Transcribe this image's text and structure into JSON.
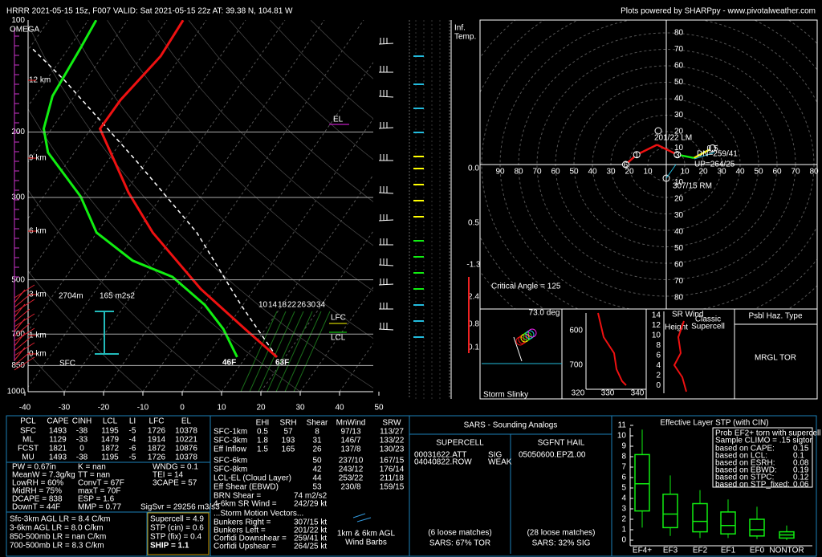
{
  "header": {
    "left": "HRRR 2021-05-15 15z, F007  VALID: Sat 2021-05-15 22z  AT: 39.38 N, 104.81 W",
    "right": "Plots powered by SHARPpy - www.pivotalweather.com"
  },
  "skewt": {
    "pressure_labels": [
      "100",
      "200",
      "300",
      "500",
      "700",
      "850",
      "1000"
    ],
    "temp_labels": [
      "-40",
      "-30",
      "-20",
      "-10",
      "0",
      "10",
      "20",
      "30",
      "40",
      "50"
    ],
    "omega_label": "OMEGA",
    "height_labels": [
      "12 km",
      "9 km",
      "6 km",
      "3 km",
      "1 km",
      "0 km"
    ],
    "inflow_height": "2704m",
    "inflow_srh": "165 m2s2",
    "sfc_label": "SFC",
    "dewpoint_label": "46F",
    "temperature_label": "63F",
    "el_label": "EL",
    "lfc_label": "LFC",
    "lcl_label": "LCL",
    "isopleth_labels": [
      "10",
      "14",
      "18",
      "22",
      "26",
      "30",
      "34"
    ],
    "temperature": {
      "pressure": [
        807,
        678,
        529,
        373,
        291,
        196,
        164,
        125,
        100
      ],
      "temp_c": [
        17.9,
        4.8,
        -13.6,
        -35.8,
        -49.1,
        -67.7,
        -67.6,
        -65.2,
        -65.9
      ]
    },
    "dewpoint": {
      "pressure": [
        807,
        678,
        584,
        491,
        444,
        373,
        298,
        227,
        196,
        160,
        119,
        100
      ],
      "temp_c": [
        7.8,
        -0.7,
        -9.7,
        -22.9,
        -35.9,
        -50.1,
        -60.6,
        -76.7,
        -82,
        -85.6,
        -87,
        -88
      ]
    },
    "parcel": {
      "pressure": [
        807,
        584,
        373,
        239,
        145,
        119
      ],
      "temp_c": [
        17.9,
        -0.5,
        -24.6,
        -52.8,
        -85.4,
        -99.3
      ]
    }
  },
  "inferred_temp": {
    "title": [
      "Inf.",
      "Temp."
    ],
    "values": [
      "0.0",
      "0.5",
      "-1.3",
      "2.4",
      "0.8",
      "0.1"
    ]
  },
  "hodograph": {
    "top_labels": [
      "80",
      "70",
      "60",
      "50",
      "40",
      "30",
      "20",
      "10"
    ],
    "bottom_labels": [
      "10",
      "20",
      "30",
      "40",
      "50",
      "60",
      "70",
      "80"
    ],
    "left_labels": [
      "90",
      "80",
      "70",
      "60",
      "50",
      "40",
      "30",
      "20",
      "10"
    ],
    "right_labels": [
      "10",
      "20",
      "30",
      "40",
      "50",
      "60",
      "70",
      "80"
    ],
    "u": [
      -22,
      -16,
      -5,
      6,
      15,
      25
    ],
    "v": [
      0,
      6,
      12,
      6,
      4,
      10
    ],
    "height_labels": [
      "6",
      "1",
      "3",
      "0.5"
    ],
    "lm": "201/22 LM",
    "rm": "307/15 RM",
    "dn": "DN=259/41",
    "up": "UP=264/25",
    "critical_angle": "Critical Angle = 125"
  },
  "slinky": {
    "angle": "73.0 deg",
    "title": "Storm Slinky"
  },
  "theta": {
    "pressure_labels": [
      "600",
      "700"
    ],
    "x_labels": [
      "320",
      "330",
      "340"
    ]
  },
  "srwind": {
    "y_labels": [
      "14",
      "12",
      "10",
      "8",
      "6",
      "4",
      "2",
      "0"
    ],
    "title": "SR Wind",
    "height": "Height",
    "classic": [
      "Classic",
      "Supercell"
    ]
  },
  "hazard": {
    "title": "Psbl Haz. Type",
    "value": "MRGL TOR"
  },
  "parcels": {
    "headers": [
      "PCL",
      "CAPE",
      "CINH",
      "LCL",
      "LI",
      "LFC",
      "EL"
    ],
    "rows": [
      [
        "SFC",
        "1493",
        "-38",
        "1195",
        "-5",
        "1726",
        "10378"
      ],
      [
        "ML",
        "1129",
        "-33",
        "1479",
        "-4",
        "1914",
        "10221"
      ],
      [
        "FCST",
        "1821",
        "0",
        "1872",
        "-6",
        "1872",
        "10876"
      ],
      [
        "MU",
        "1493",
        "-38",
        "1195",
        "-5",
        "1726",
        "10378"
      ]
    ]
  },
  "indices": {
    "col1": [
      "PW = 0.67in",
      "MeanW = 7.3g/kg",
      "LowRH = 60%",
      "MidRH = 75%",
      "DCAPE = 838",
      "DownT = 44F"
    ],
    "col2": [
      "K = nan",
      "TT = nan",
      "ConvT = 67F",
      "maxT = 70F",
      "ESP = 1.6",
      "MMP = 0.77"
    ],
    "col3": [
      "WNDG = 0.1",
      "TEI = 14",
      "3CAPE = 57"
    ],
    "sigsvr": "SigSvr = 29256 m3/s3",
    "lapse": [
      "Sfc-3km AGL LR = 8.4 C/km",
      "3-6km AGL LR = 8.0 C/km",
      "850-500mb LR = nan C/km",
      "700-500mb LR = 8.3 C/km"
    ],
    "severe": [
      "Supercell = 4.9",
      "STP (cin) = 0.6",
      "STP (fix) = 0.4",
      "SHIP = 1.1"
    ]
  },
  "kinematics": {
    "headers": [
      "EHI",
      "SRH",
      "Shear",
      "MnWind",
      "SRW"
    ],
    "rows_full": [
      [
        "SFC-1km",
        "0.5",
        "57",
        "8",
        "97/13",
        "113/27"
      ],
      [
        "SFC-3km",
        "1.8",
        "193",
        "31",
        "146/7",
        "133/22"
      ],
      [
        "Eff Inflow",
        "1.5",
        "165",
        "26",
        "137/8",
        "130/23"
      ]
    ],
    "rows_shear": [
      [
        "SFC-6km",
        "50",
        "237/10",
        "167/15"
      ],
      [
        "SFC-8km",
        "42",
        "243/12",
        "176/14"
      ],
      [
        "LCL-EL (Cloud Layer)",
        "44",
        "253/22",
        "211/18"
      ],
      [
        "Eff Shear (EBWD)",
        "53",
        "230/8",
        "159/15"
      ]
    ],
    "extra": [
      [
        "BRN Shear = ",
        "74 m2/s2"
      ],
      [
        "4-6km SR Wind = ",
        "242/29 kt"
      ]
    ],
    "motion_title": "...Storm Motion Vectors...",
    "motion": [
      [
        "Bunkers Right = ",
        "307/15 kt"
      ],
      [
        "Bunkers Left = ",
        "201/22 kt"
      ],
      [
        "Corfidi Downshear = ",
        "259/41 kt"
      ],
      [
        "Corfidi Upshear = ",
        "264/25 kt"
      ]
    ],
    "barb_note": [
      "1km & 6km AGL",
      "Wind Barbs"
    ]
  },
  "sars": {
    "title": "SARS - Sounding Analogs",
    "supercell": "SUPERCELL",
    "hail": "SGFNT HAIL",
    "supercell_matches": [
      [
        "00031622.ATT",
        "SIG"
      ],
      [
        "04040822.ROW",
        "WEAK"
      ]
    ],
    "hail_matches": [
      [
        "05050600.EPZ",
        "1.00"
      ]
    ],
    "supercell_loose": "(6 loose matches)",
    "hail_loose": "(28 loose matches)",
    "supercell_result": "SARS: 67% TOR",
    "hail_result": "SARS: 32% SIG"
  },
  "stp": {
    "title": "Effective Layer STP (with CIN)",
    "yticks": [
      0,
      1,
      2,
      3,
      4,
      5,
      6,
      7,
      8,
      9,
      10,
      11
    ],
    "categories": [
      "EF4+",
      "EF3",
      "EF2",
      "EF1",
      "EF0",
      "NONTOR"
    ],
    "low": [
      1.2,
      0.4,
      0.2,
      0.2,
      0.1,
      0
    ],
    "q1": [
      2.8,
      1.2,
      0.8,
      0.6,
      0.4,
      0.2
    ],
    "median": [
      5.4,
      2.5,
      1.8,
      1.4,
      1,
      0.5
    ],
    "q3": [
      8.2,
      4.4,
      3.5,
      2.7,
      2,
      0.8
    ],
    "high": [
      10.6,
      6.2,
      4.8,
      3.9,
      3.2,
      1.4
    ],
    "legend_title": [
      "Prob EF2+ torn with supercell",
      "Sample CLIMO = .15 sigtor"
    ],
    "legend_rows": [
      [
        "based on CAPE:",
        "0.15"
      ],
      [
        "based on LCL:",
        "0.1"
      ],
      [
        "based on ESRH:",
        "0.08"
      ],
      [
        "based on EBWD:",
        "0.19"
      ],
      [
        "based on STPC:",
        "0.12"
      ],
      [
        "based on STP_fixed:",
        "0.06"
      ]
    ]
  }
}
